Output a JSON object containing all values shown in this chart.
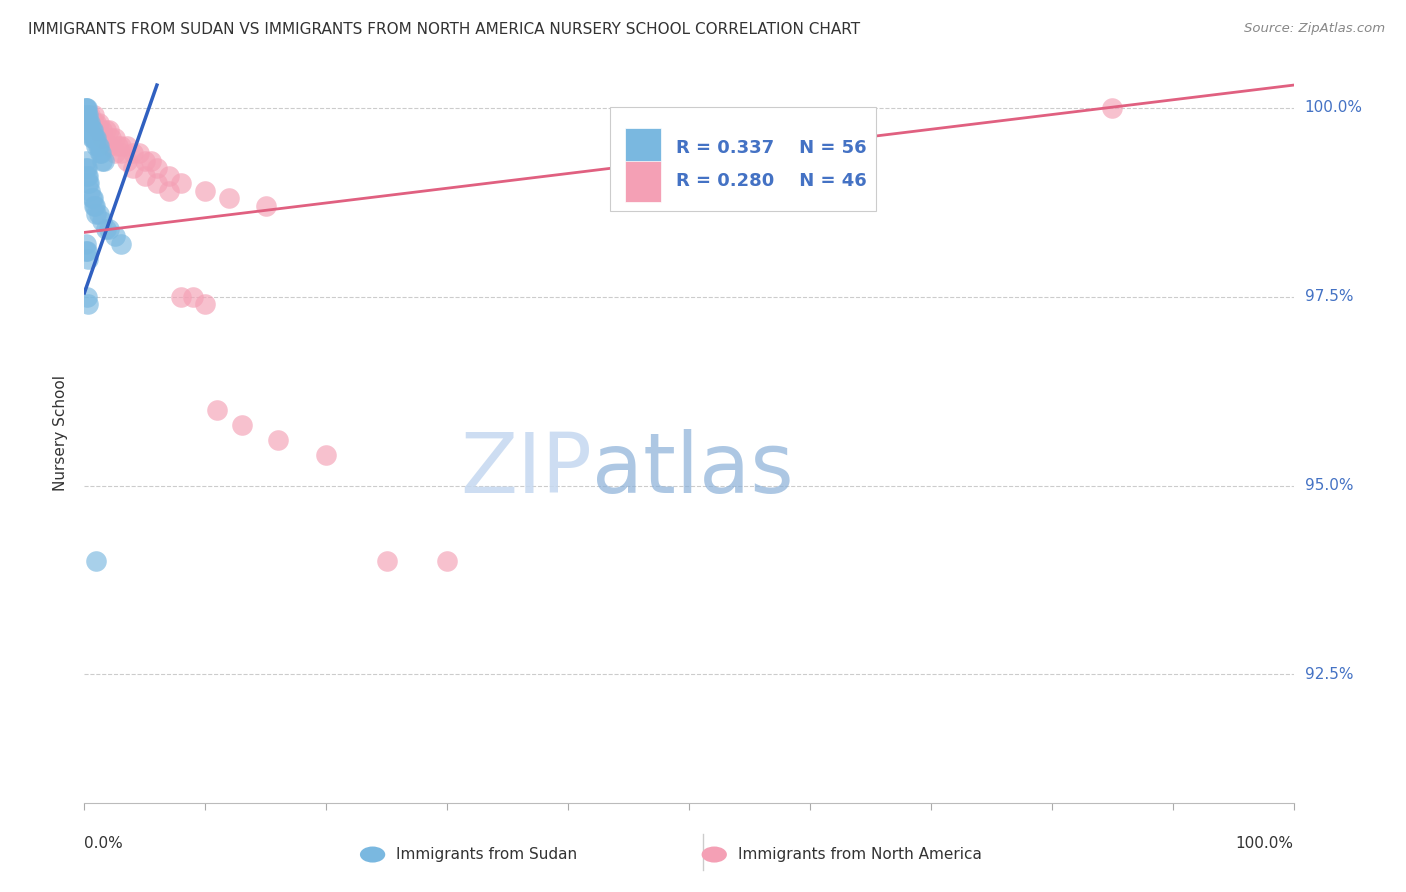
{
  "title": "IMMIGRANTS FROM SUDAN VS IMMIGRANTS FROM NORTH AMERICA NURSERY SCHOOL CORRELATION CHART",
  "source": "Source: ZipAtlas.com",
  "ylabel": "Nursery School",
  "ytick_labels": [
    "100.0%",
    "97.5%",
    "95.0%",
    "92.5%"
  ],
  "ytick_values": [
    1.0,
    0.975,
    0.95,
    0.925
  ],
  "xlim": [
    0.0,
    1.0
  ],
  "ylim": [
    0.908,
    1.006
  ],
  "legend_sudan_r": "0.337",
  "legend_sudan_n": "56",
  "legend_na_r": "0.280",
  "legend_na_n": "46",
  "blue_color": "#7ab8e0",
  "pink_color": "#f4a0b5",
  "blue_line_color": "#3060c0",
  "pink_line_color": "#e06080",
  "legend_text_color": "#4472c4",
  "watermark_zip_color": "#c5d8f0",
  "watermark_atlas_color": "#8ab0d8",
  "sudan_x": [
    0.001,
    0.001,
    0.001,
    0.001,
    0.001,
    0.002,
    0.002,
    0.002,
    0.002,
    0.003,
    0.003,
    0.003,
    0.004,
    0.004,
    0.005,
    0.005,
    0.006,
    0.006,
    0.007,
    0.007,
    0.008,
    0.009,
    0.01,
    0.01,
    0.011,
    0.012,
    0.013,
    0.014,
    0.015,
    0.016,
    0.001,
    0.001,
    0.002,
    0.002,
    0.003,
    0.003,
    0.004,
    0.005,
    0.006,
    0.007,
    0.008,
    0.009,
    0.01,
    0.012,
    0.015,
    0.018,
    0.02,
    0.025,
    0.03,
    0.001,
    0.001,
    0.002,
    0.003,
    0.002,
    0.003,
    0.01
  ],
  "sudan_y": [
    1.0,
    1.0,
    0.999,
    0.999,
    0.999,
    1.0,
    0.999,
    0.998,
    0.998,
    0.999,
    0.998,
    0.997,
    0.998,
    0.997,
    0.998,
    0.997,
    0.997,
    0.996,
    0.997,
    0.996,
    0.996,
    0.996,
    0.996,
    0.995,
    0.995,
    0.995,
    0.994,
    0.994,
    0.993,
    0.993,
    0.993,
    0.992,
    0.992,
    0.991,
    0.991,
    0.99,
    0.99,
    0.989,
    0.988,
    0.988,
    0.987,
    0.987,
    0.986,
    0.986,
    0.985,
    0.984,
    0.984,
    0.983,
    0.982,
    0.982,
    0.981,
    0.981,
    0.98,
    0.975,
    0.974,
    0.94
  ],
  "na_x": [
    0.005,
    0.008,
    0.01,
    0.012,
    0.015,
    0.018,
    0.02,
    0.022,
    0.025,
    0.028,
    0.03,
    0.035,
    0.04,
    0.045,
    0.05,
    0.055,
    0.06,
    0.07,
    0.08,
    0.1,
    0.12,
    0.15,
    0.003,
    0.006,
    0.008,
    0.01,
    0.012,
    0.015,
    0.02,
    0.025,
    0.03,
    0.035,
    0.04,
    0.05,
    0.06,
    0.07,
    0.85,
    0.08,
    0.09,
    0.1,
    0.11,
    0.13,
    0.16,
    0.2,
    0.25,
    0.3
  ],
  "na_y": [
    0.999,
    0.999,
    0.998,
    0.998,
    0.997,
    0.997,
    0.997,
    0.996,
    0.996,
    0.995,
    0.995,
    0.995,
    0.994,
    0.994,
    0.993,
    0.993,
    0.992,
    0.991,
    0.99,
    0.989,
    0.988,
    0.987,
    0.999,
    0.998,
    0.998,
    0.997,
    0.997,
    0.996,
    0.995,
    0.994,
    0.994,
    0.993,
    0.992,
    0.991,
    0.99,
    0.989,
    1.0,
    0.975,
    0.975,
    0.974,
    0.96,
    0.958,
    0.956,
    0.954,
    0.94,
    0.94
  ],
  "blue_trend_x": [
    0.0,
    0.06
  ],
  "blue_trend_y": [
    0.9755,
    1.003
  ],
  "pink_trend_x": [
    0.0,
    1.0
  ],
  "pink_trend_y": [
    0.9835,
    1.003
  ]
}
